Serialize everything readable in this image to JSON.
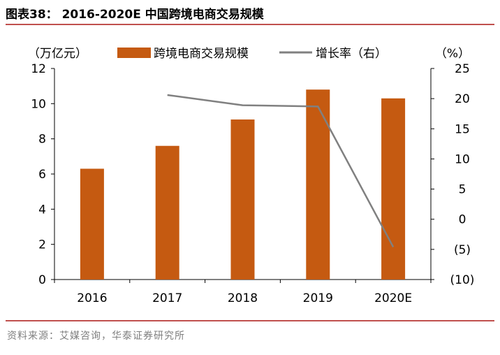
{
  "figure_title": "图表38：  2016-2020E 中国跨境电商交易规模",
  "source": "资料来源：艾媒咨询，华泰证券研究所",
  "colors": {
    "bar": "#c55a11",
    "line": "#808080",
    "accent_rule": "#c0504d"
  },
  "chart_data": {
    "type": "bar",
    "categories": [
      "2016",
      "2017",
      "2018",
      "2019",
      "2020E"
    ],
    "left_axis": {
      "unit": "（万亿元）",
      "min": 0,
      "max": 12,
      "ticks": [
        "0",
        "2",
        "4",
        "6",
        "8",
        "10",
        "12"
      ]
    },
    "right_axis": {
      "unit": "（%）",
      "min": -10,
      "max": 25,
      "ticks": [
        "(10)",
        "(5)",
        "0",
        "5",
        "10",
        "15",
        "20",
        "25"
      ]
    },
    "series": [
      {
        "name": "跨境电商交易规模",
        "type": "bar",
        "axis": "left",
        "values": [
          6.3,
          7.6,
          9.1,
          10.8,
          10.3
        ]
      },
      {
        "name": "增长率（右）",
        "type": "line",
        "axis": "right",
        "values": [
          null,
          20.6,
          18.9,
          18.7,
          -4.6
        ]
      }
    ],
    "legend_position": "top",
    "grid": false
  }
}
